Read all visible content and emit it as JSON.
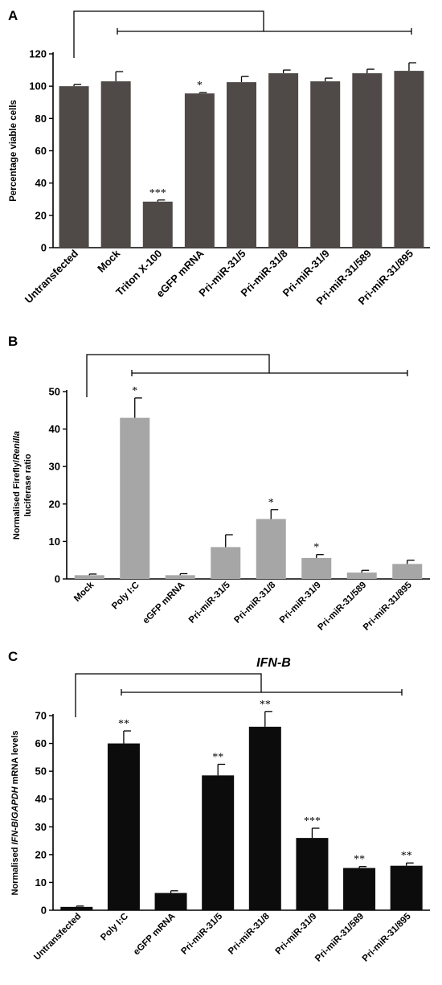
{
  "chart_data": [
    {
      "panel": "A",
      "type": "bar",
      "title": "",
      "xlabel": "",
      "ylabel": "Percentage viable cells",
      "ylim": [
        0,
        120
      ],
      "yticks": [
        "0",
        "20",
        "40",
        "60",
        "80",
        "100",
        "120"
      ],
      "color": "#4f4a47",
      "categories": [
        "Untransfected",
        "Mock",
        "Triton X-100",
        "eGFP mRNA",
        "Pri-miR-31/5",
        "Pri-miR-31/8",
        "Pri-miR-31/9",
        "Pri-miR-31/589",
        "Pri-miR-31/895"
      ],
      "values": [
        100,
        103,
        28.5,
        95.5,
        102.5,
        108,
        103,
        108,
        109.5
      ],
      "errors": [
        1,
        6,
        1,
        0.5,
        3.5,
        2,
        2,
        2.5,
        5
      ],
      "significance": [
        "",
        "",
        "***",
        "*",
        "",
        "",
        "",
        "",
        ""
      ]
    },
    {
      "panel": "B",
      "type": "bar",
      "title": "",
      "xlabel": "",
      "ylabel_parts": [
        "Normalised Firefly/",
        "Renilla"
      ],
      "ylabel_line2": "luciferase ratio",
      "ylim": [
        0,
        50
      ],
      "yticks": [
        "0",
        "10",
        "20",
        "30",
        "40",
        "50"
      ],
      "color": "#a6a6a6",
      "categories": [
        "Mock",
        "Poly I:C",
        "eGFP mRNA",
        "Pri-miR-31/5",
        "Pri-miR-31/8",
        "Pri-miR-31/9",
        "Pri-miR-31/589",
        "Pri-miR-31/895"
      ],
      "values": [
        1,
        43,
        1,
        8.5,
        16,
        5.6,
        1.7,
        4
      ],
      "errors": [
        0.3,
        5.3,
        0.4,
        3.3,
        2.5,
        0.9,
        0.6,
        1
      ],
      "significance": [
        "",
        "*",
        "",
        "",
        "*",
        "*",
        "",
        ""
      ]
    },
    {
      "panel": "C",
      "type": "bar",
      "title": "IFN-B",
      "xlabel": "",
      "ylabel_parts": [
        "Normalised ",
        "IFN-B",
        "/",
        "GAPDH",
        " mRNA levels"
      ],
      "ylim": [
        0,
        70
      ],
      "yticks": [
        "0",
        "10",
        "20",
        "30",
        "40",
        "50",
        "60",
        "70"
      ],
      "color": "#0c0c0c",
      "categories": [
        "Untransfected",
        "Poly I:C",
        "eGFP mRNA",
        "Pri-miR-31/5",
        "Pri-miR-31/8",
        "Pri-miR-31/9",
        "Pri-miR-31/589",
        "Pri-miR-31/895"
      ],
      "values": [
        1.2,
        60,
        6.2,
        48.5,
        66,
        26,
        15.2,
        16
      ],
      "errors": [
        0.3,
        4.5,
        0.8,
        4,
        5.5,
        3.5,
        0.5,
        1
      ],
      "significance": [
        "",
        "**",
        "",
        "**",
        "**",
        "***",
        "**",
        "**"
      ]
    }
  ]
}
